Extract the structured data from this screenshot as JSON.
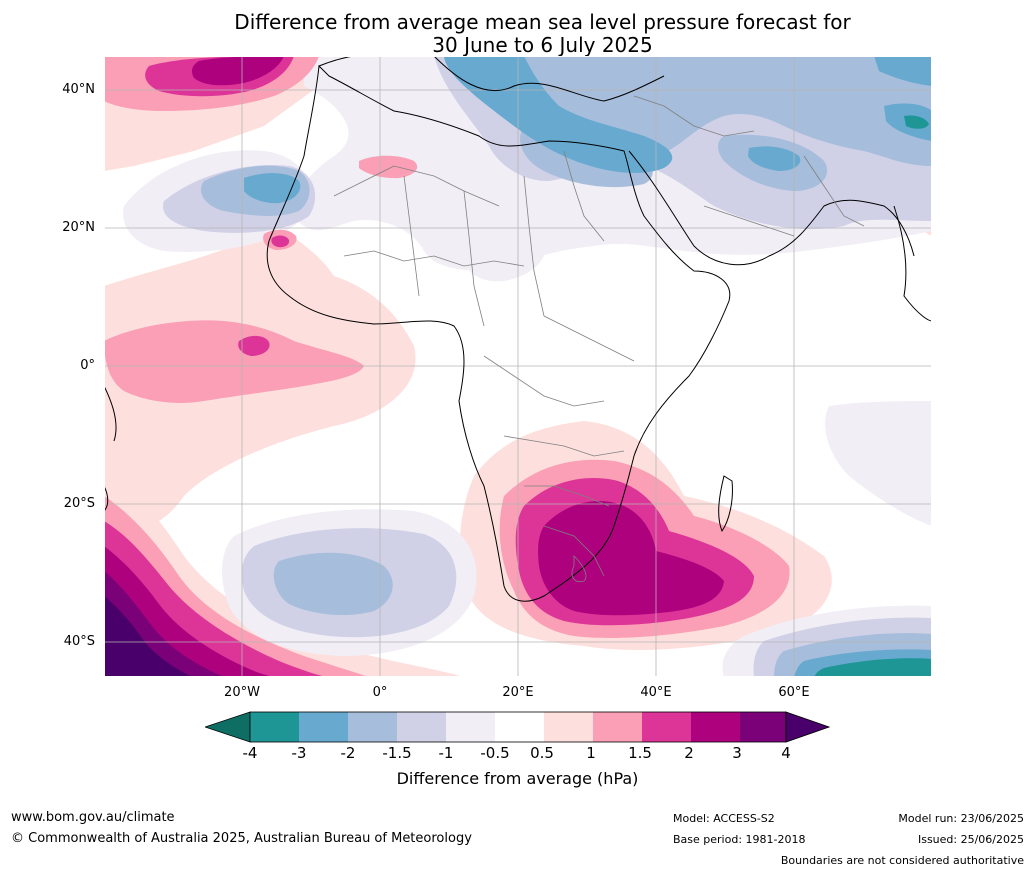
{
  "title_line1": "Difference from average mean sea level pressure forecast for",
  "title_line2": "30 June to 6 July 2025",
  "lat_labels": [
    "40°N",
    "20°N",
    "0°",
    "20°S",
    "40°S"
  ],
  "lon_labels": [
    "20°W",
    "0°",
    "20°E",
    "40°E",
    "60°E"
  ],
  "colorbar": {
    "ticks": [
      "-4",
      "-3",
      "-2",
      "-1.5",
      "-1",
      "-0.5",
      "0.5",
      "1",
      "1.5",
      "2",
      "3",
      "4"
    ],
    "colors": [
      "#0f6e64",
      "#1f9696",
      "#67a9cf",
      "#a6bddb",
      "#d0d1e6",
      "#f1eef6",
      "#ffffff",
      "#fde0dd",
      "#fa9fb5",
      "#dd3497",
      "#ae017e",
      "#7a0177",
      "#49006a"
    ],
    "label": "Difference from average (hPa)"
  },
  "footer": {
    "website": "www.bom.gov.au/climate",
    "copyright": "© Commonwealth of Australia 2025, Australian Bureau of Meteorology",
    "model": "Model: ACCESS-S2",
    "base_period": "Base period: 1981-2018",
    "model_run": "Model run: 23/06/2025",
    "issued": "Issued: 25/06/2025",
    "disclaimer": "Boundaries are not considered authoritative"
  }
}
